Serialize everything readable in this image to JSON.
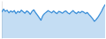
{
  "chart_data": {
    "type": "area",
    "color": "#3c8fd8",
    "tick_labels": false,
    "grid": false,
    "ylim": [
      0,
      100
    ],
    "values": [
      70,
      78,
      72,
      75,
      68,
      73,
      70,
      74,
      66,
      72,
      69,
      75,
      71,
      67,
      73,
      70,
      64,
      72,
      76,
      68,
      62,
      55,
      48,
      60,
      66,
      70,
      74,
      71,
      68,
      73,
      69,
      66,
      72,
      70,
      67,
      71,
      73,
      68,
      65,
      70,
      74,
      69,
      66,
      71,
      68,
      72,
      70,
      66,
      69,
      63,
      58,
      52,
      45,
      50,
      56,
      64,
      72,
      82,
      90
    ]
  }
}
